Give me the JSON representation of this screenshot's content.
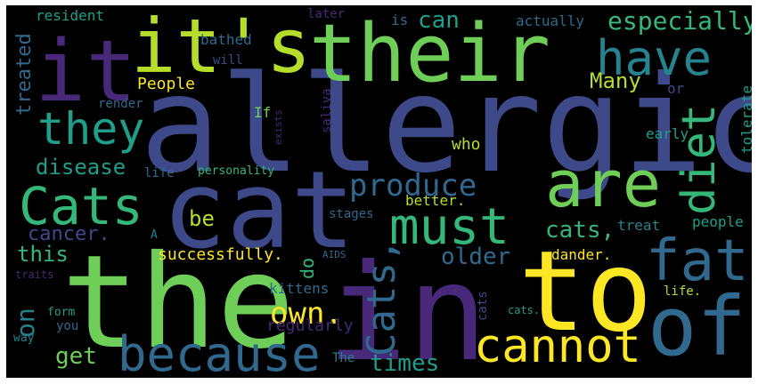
{
  "palette": {
    "background": "#000000",
    "yellow": "#fde725",
    "lime": "#b5de2b",
    "green": "#6ece58",
    "mint": "#35b779",
    "teal": "#1f9e89",
    "cyan": "#26828e",
    "blue": "#31688e",
    "indigo": "#3e4989",
    "purple": "#482878",
    "violet": "#440154"
  },
  "words": [
    "allergic",
    "cat",
    "the",
    "in",
    "to",
    "their",
    "it's",
    "it",
    "are",
    "of",
    "have",
    "fat",
    "cannot",
    "because",
    "must",
    "Cats",
    "they",
    "diet",
    "own.",
    "produce",
    "Cats,",
    "especially",
    "can",
    "times",
    "disease",
    "cats,",
    "older",
    "be",
    "on",
    "get",
    "this",
    "cancer.",
    "Many",
    "treated",
    "do",
    "People",
    "successfully.",
    "kittens",
    "regularly",
    "who",
    "treat",
    "people",
    "dander.",
    "early",
    "tolerate",
    "better.",
    "If",
    "render",
    "life.",
    "bathed",
    "resident",
    "actually",
    "will",
    "is",
    "later",
    "or",
    "stages",
    "saliva",
    "life",
    "personality",
    "exists",
    "form",
    "you",
    "way",
    "The",
    "AIDS",
    "A",
    "traits",
    "cats.",
    "cats"
  ]
}
